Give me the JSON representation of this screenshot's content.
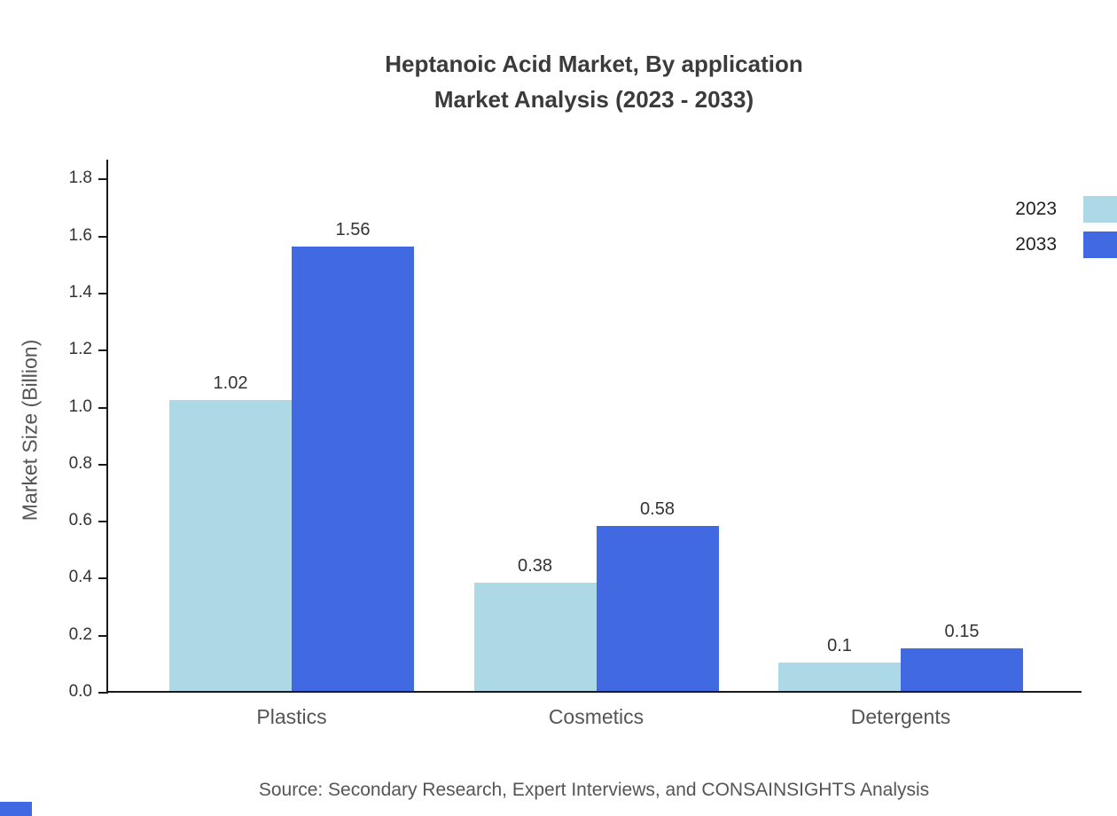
{
  "title": {
    "line1": "Heptanoic Acid Market, By application",
    "line2": "Market Analysis (2023 - 2033)"
  },
  "source": "Source: Secondary Research, Expert Interviews, and CONSAINSIGHTS Analysis",
  "chart_data": {
    "type": "bar",
    "categories": [
      "Plastics",
      "Cosmetics",
      "Detergents"
    ],
    "series": [
      {
        "name": "2023",
        "color": "#ADD8E6",
        "values": [
          1.02,
          0.38,
          0.1
        ]
      },
      {
        "name": "2033",
        "color": "#4169E1",
        "values": [
          1.56,
          0.58,
          0.15
        ]
      }
    ],
    "title": "Heptanoic Acid Market, By application Market Analysis (2023 - 2033)",
    "xlabel": "",
    "ylabel": "Market Size (Billion)",
    "ylim": [
      0,
      1.87
    ],
    "yticks": [
      0.0,
      0.2,
      0.4,
      0.6,
      0.8,
      1.0,
      1.2,
      1.4,
      1.6,
      1.8
    ],
    "grid": false,
    "legend_position": "top-right"
  }
}
